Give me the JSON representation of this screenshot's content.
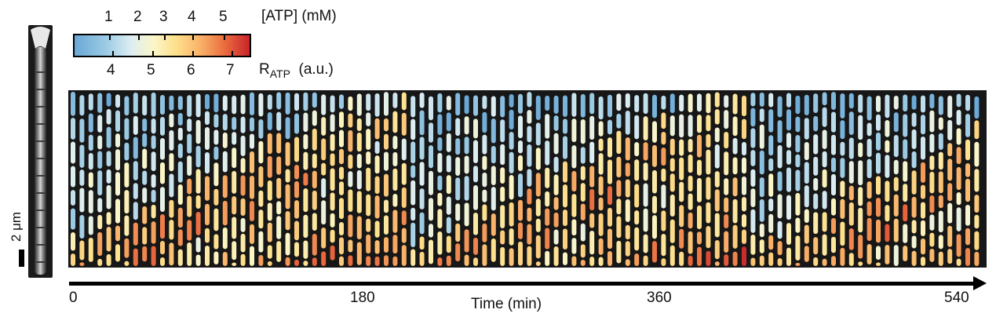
{
  "scale_bar": {
    "label": "2 μm"
  },
  "colorbar": {
    "top_label": "[ATP] (mM)",
    "top_ticks": [
      "1",
      "2",
      "3",
      "4",
      "5"
    ],
    "bottom_label_main": "R",
    "bottom_label_sub": "ATP",
    "bottom_label_unit": "(a.u.)",
    "bottom_ticks": [
      "4",
      "5",
      "6",
      "7"
    ],
    "colors": [
      "#6aa8d6",
      "#9ccbe4",
      "#dcedf2",
      "#fbf6c8",
      "#fde08c",
      "#f9b168",
      "#ea6b3e",
      "#c8242a"
    ]
  },
  "time_axis": {
    "label": "Time (min)",
    "ticks": [
      "0",
      "180",
      "360",
      "540"
    ]
  }
}
